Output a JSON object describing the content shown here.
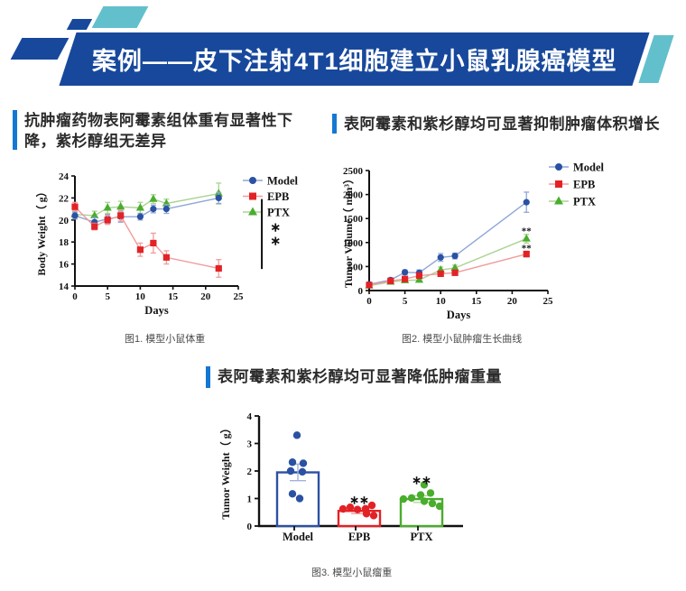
{
  "header": {
    "title": "案例——皮下注射4T1细胞建立小鼠乳腺癌模型"
  },
  "sections": {
    "left_title": "抗肿瘤药物表阿霉素组体重有显著性下降，紫杉醇组无差异",
    "right_title": "表阿霉素和紫杉醇均可显著抑制肿瘤体积增长",
    "bottom_title": "表阿霉素和紫杉醇均可显著降低肿瘤重量"
  },
  "captions": {
    "fig1": "图1. 模型小鼠体重",
    "fig2": "图2. 模型小鼠肿瘤生长曲线",
    "fig3": "图3. 模型小鼠瘤重"
  },
  "colors": {
    "banner_navy": "#17489c",
    "accent_teal": "#62c0cc",
    "section_bar_blue": "#1478d2",
    "model_blue": "#2b51a3",
    "model_blue_light": "#8fa6d6",
    "epb_red": "#e32226",
    "epb_red_light": "#f29b9b",
    "ptx_green": "#4aad2e",
    "ptx_green_light": "#abd392"
  },
  "chart_data": [
    {
      "id": "body-weight",
      "type": "line",
      "xlabel": "Days",
      "ylabel": "Body Weight（ g）",
      "xlim": [
        0,
        25
      ],
      "ylim": [
        14,
        24
      ],
      "xticks": [
        0,
        5,
        10,
        15,
        20,
        25
      ],
      "yticks": [
        14,
        16,
        18,
        20,
        22,
        24
      ],
      "grid": false,
      "legend_position": "top-right",
      "x": [
        0,
        3,
        5,
        7,
        10,
        12,
        14,
        22
      ],
      "series": [
        {
          "name": "PTX",
          "marker": "triangle",
          "color": "#4aad2e",
          "line_color": "#abd392",
          "values": [
            20.5,
            20.4,
            21.1,
            21.2,
            21.1,
            21.9,
            21.5,
            22.4
          ],
          "errors": [
            0.4,
            0.4,
            0.5,
            0.5,
            0.5,
            0.4,
            0.4,
            0.95
          ]
        },
        {
          "name": "Model",
          "marker": "circle",
          "color": "#2b51a3",
          "line_color": "#8fa6d6",
          "values": [
            20.4,
            19.8,
            20.1,
            20.3,
            20.3,
            21.0,
            21.0,
            22.0
          ],
          "errors": [
            0.3,
            0.4,
            0.4,
            0.5,
            0.3,
            0.35,
            0.4,
            0.5
          ]
        },
        {
          "name": "EPB",
          "marker": "square",
          "color": "#e32226",
          "line_color": "#f29b9b",
          "values": [
            21.2,
            19.4,
            20.0,
            20.4,
            17.3,
            17.9,
            16.6,
            15.6
          ],
          "errors": [
            0.4,
            0.3,
            0.4,
            0.5,
            0.6,
            0.9,
            0.6,
            0.8
          ]
        }
      ],
      "legend_order": [
        "Model",
        "EPB",
        "PTX"
      ],
      "annotations": [
        {
          "kind": "vline",
          "x": 28.6,
          "y1": 21.9,
          "y2": 15.55
        },
        {
          "kind": "text",
          "x": 30.7,
          "y": 19.3,
          "text": "∗",
          "size": 14
        },
        {
          "kind": "text",
          "x": 30.7,
          "y": 18.05,
          "text": "∗",
          "size": 14
        }
      ]
    },
    {
      "id": "tumor-volume",
      "type": "line",
      "xlabel": "Days",
      "ylabel": "Tumor Volume（ mm³）",
      "xlim": [
        0,
        25
      ],
      "ylim": [
        0,
        2500
      ],
      "xticks": [
        0,
        5,
        10,
        15,
        20,
        25
      ],
      "yticks": [
        0,
        500,
        1000,
        1500,
        2000,
        2500
      ],
      "grid": false,
      "legend_position": "top-right",
      "x": [
        0,
        3,
        5,
        7,
        10,
        12,
        22
      ],
      "series": [
        {
          "name": "PTX",
          "marker": "triangle",
          "color": "#4aad2e",
          "line_color": "#abd392",
          "values": [
            100,
            180,
            210,
            220,
            430,
            470,
            1080
          ],
          "errors": [
            20,
            30,
            40,
            40,
            60,
            60,
            90
          ]
        },
        {
          "name": "Model",
          "marker": "circle",
          "color": "#2b51a3",
          "line_color": "#8fa6d6",
          "values": [
            130,
            220,
            380,
            370,
            690,
            720,
            1840
          ],
          "errors": [
            30,
            40,
            50,
            60,
            80,
            60,
            210
          ]
        },
        {
          "name": "EPB",
          "marker": "square",
          "color": "#e32226",
          "line_color": "#f29b9b",
          "values": [
            115,
            200,
            240,
            310,
            350,
            370,
            760
          ],
          "errors": [
            20,
            30,
            40,
            40,
            40,
            40,
            60
          ]
        }
      ],
      "legend_order": [
        "Model",
        "EPB",
        "PTX"
      ],
      "annotations": [
        {
          "kind": "text",
          "x": 22,
          "y": 1250,
          "text": "**",
          "size": 11
        },
        {
          "kind": "text",
          "x": 22,
          "y": 890,
          "text": "**",
          "size": 11
        }
      ]
    },
    {
      "id": "tumor-weight",
      "type": "bar",
      "ylabel": "Tumor Weight（ g）",
      "ylim": [
        0,
        4
      ],
      "yticks": [
        0,
        1,
        2,
        3,
        4
      ],
      "grid": false,
      "categories": [
        "Model",
        "EPB",
        "PTX"
      ],
      "values": [
        1.95,
        0.55,
        0.98
      ],
      "errors": [
        0.3,
        0.1,
        0.12
      ],
      "colors": [
        "#2b51a3",
        "#e32226",
        "#4aad2e"
      ],
      "light_colors": [
        "#9fb3d9",
        "#f0a0a0",
        "#b2d69a"
      ],
      "sig": [
        "",
        "∗∗",
        "∗∗"
      ],
      "sig_y": [
        0,
        0.93,
        1.65
      ],
      "points": [
        [
          [
            -1,
            3.3
          ],
          [
            -6,
            2.32
          ],
          [
            6,
            2.28
          ],
          [
            -8,
            2.0
          ],
          [
            5,
            1.97
          ],
          [
            -6,
            1.17
          ],
          [
            2,
            1.0
          ]
        ],
        [
          [
            -18,
            0.62
          ],
          [
            -10,
            0.68
          ],
          [
            -2,
            0.6
          ],
          [
            7,
            0.63
          ],
          [
            14,
            0.75
          ],
          [
            8,
            0.45
          ],
          [
            16,
            0.38
          ]
        ],
        [
          [
            3,
            1.5
          ],
          [
            10,
            1.2
          ],
          [
            -1,
            1.13
          ],
          [
            -11,
            1.02
          ],
          [
            -20,
            0.98
          ],
          [
            3,
            0.9
          ],
          [
            12,
            0.82
          ],
          [
            20,
            0.72
          ]
        ]
      ]
    }
  ]
}
